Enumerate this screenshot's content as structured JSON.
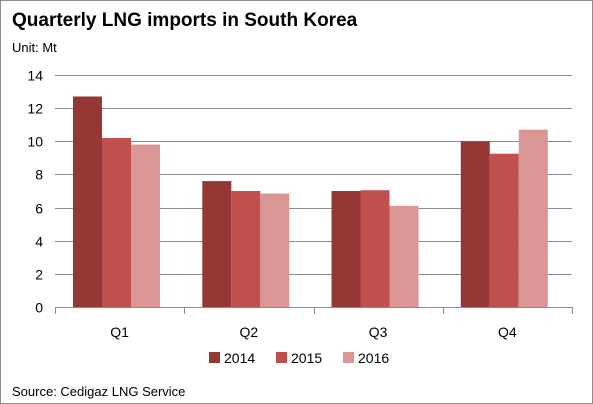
{
  "title": "Quarterly LNG imports in South Korea",
  "unit_label": "Unit: Mt",
  "source": "Source: Cedigaz LNG Service",
  "chart_data": {
    "type": "bar",
    "categories": [
      "Q1",
      "Q2",
      "Q3",
      "Q4"
    ],
    "series": [
      {
        "name": "2014",
        "color": "#953735",
        "values": [
          12.7,
          7.6,
          7.0,
          10.0
        ]
      },
      {
        "name": "2015",
        "color": "#c0504d",
        "values": [
          10.2,
          7.0,
          7.05,
          9.25
        ]
      },
      {
        "name": "2016",
        "color": "#d99694",
        "values": [
          9.8,
          6.85,
          6.1,
          10.7
        ]
      }
    ],
    "ylim": [
      0,
      14
    ],
    "yticks": [
      "0",
      "2",
      "4",
      "6",
      "8",
      "10",
      "12",
      "14"
    ],
    "grid": true,
    "legend_position": "bottom"
  }
}
